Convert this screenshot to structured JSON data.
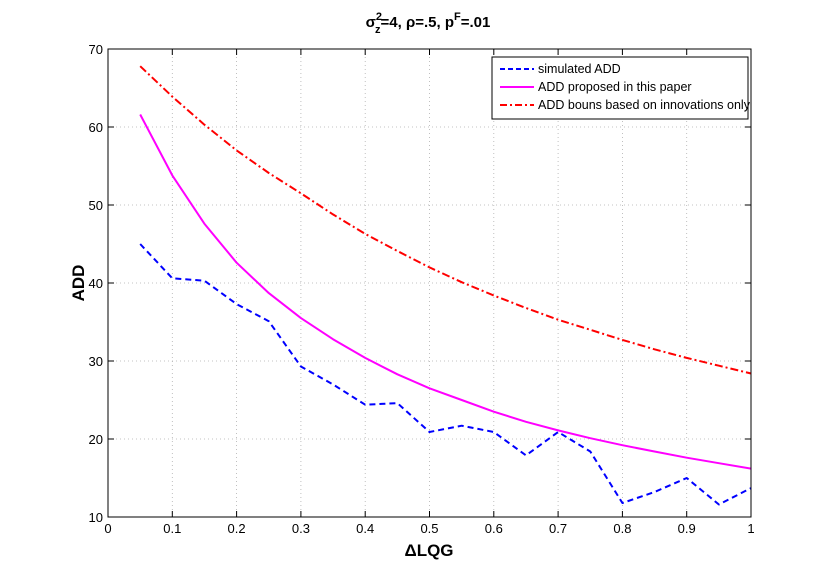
{
  "chart_data": {
    "type": "line",
    "title": {
      "sigma": "σ",
      "sigma_sup": "2",
      "sigma_sub": "z",
      "part1": "=4, ρ=.5, p",
      "p_sup": "F",
      "part2": "=.01"
    },
    "xlabel": "ΔLQG",
    "ylabel": "ADD",
    "xlim": [
      0,
      1
    ],
    "ylim": [
      10,
      70
    ],
    "xticks": [
      0,
      0.1,
      0.2,
      0.3,
      0.4,
      0.5,
      0.6,
      0.7,
      0.8,
      0.9,
      1
    ],
    "xtick_labels": [
      "0",
      "0.1",
      "0.2",
      "0.3",
      "0.4",
      "0.5",
      "0.6",
      "0.7",
      "0.8",
      "0.9",
      "1"
    ],
    "yticks": [
      10,
      20,
      30,
      40,
      50,
      60,
      70
    ],
    "ytick_labels": [
      "10",
      "20",
      "30",
      "40",
      "50",
      "60",
      "70"
    ],
    "grid": true,
    "legend_position": "top-right",
    "series": [
      {
        "name": "simulated ADD",
        "color": "#0000ff",
        "style": "dashed",
        "x": [
          0.05,
          0.1,
          0.15,
          0.2,
          0.25,
          0.3,
          0.35,
          0.4,
          0.45,
          0.5,
          0.55,
          0.6,
          0.65,
          0.7,
          0.75,
          0.8,
          0.85,
          0.9,
          0.95,
          1.0
        ],
        "y": [
          45.0,
          40.6,
          40.3,
          37.3,
          35.1,
          29.3,
          27.0,
          24.4,
          24.6,
          20.9,
          21.7,
          20.9,
          17.9,
          20.9,
          18.4,
          11.8,
          13.2,
          15.0,
          11.6,
          13.7
        ]
      },
      {
        "name": "ADD proposed in this paper",
        "color": "#ff00ff",
        "style": "solid",
        "x": [
          0.05,
          0.1,
          0.15,
          0.2,
          0.25,
          0.3,
          0.35,
          0.4,
          0.45,
          0.5,
          0.55,
          0.6,
          0.65,
          0.7,
          0.75,
          0.8,
          0.85,
          0.9,
          0.95,
          1.0
        ],
        "y": [
          61.6,
          53.8,
          47.6,
          42.6,
          38.7,
          35.5,
          32.8,
          30.4,
          28.3,
          26.5,
          25.0,
          23.5,
          22.2,
          21.1,
          20.1,
          19.2,
          18.4,
          17.6,
          16.9,
          16.2
        ]
      },
      {
        "name": "ADD bouns based on innovations only",
        "color": "#ff0000",
        "style": "dashdot",
        "x": [
          0.05,
          0.1,
          0.15,
          0.2,
          0.25,
          0.3,
          0.35,
          0.4,
          0.45,
          0.5,
          0.55,
          0.6,
          0.65,
          0.7,
          0.75,
          0.8,
          0.85,
          0.9,
          0.95,
          1.0
        ],
        "y": [
          67.8,
          63.9,
          60.3,
          57.0,
          54.1,
          51.5,
          48.8,
          46.3,
          44.1,
          42.0,
          40.1,
          38.4,
          36.8,
          35.3,
          34.0,
          32.7,
          31.5,
          30.4,
          29.4,
          28.4
        ]
      }
    ]
  }
}
